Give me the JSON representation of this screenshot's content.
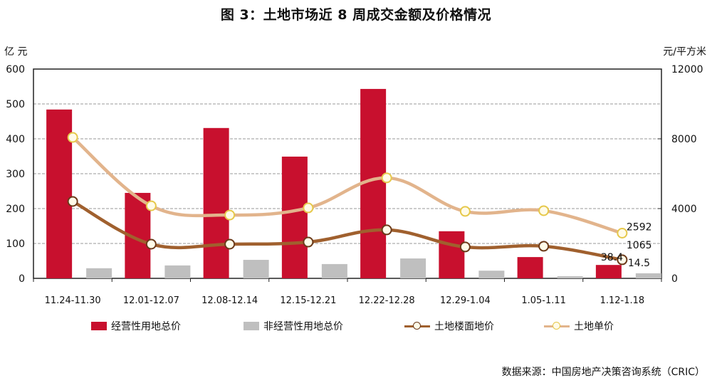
{
  "title": "图 3：土地市场近 8 周成交金额及价格情况",
  "axis_units": {
    "left": "亿 元",
    "right": "元/平方米"
  },
  "legend": [
    {
      "label": "经营性用地总价",
      "type": "bar",
      "color": "#c8102e"
    },
    {
      "label": "非经营性用地总价",
      "type": "bar",
      "color": "#bfbfbf"
    },
    {
      "label": "土地楼面地价",
      "type": "line",
      "color": "#a0602e"
    },
    {
      "label": "土地单价",
      "type": "line",
      "color": "#e2b48c"
    }
  ],
  "source": "数据来源：中国房地产决策咨询系统（CRIC）",
  "colors": {
    "commercial_bar": "#c8102e",
    "noncommercial_bar": "#bfbfbf",
    "floor_price_line": "#a0602e",
    "unit_price_line": "#e2b48c",
    "marker_fill": "#fffbe8",
    "marker_stroke_unit": "#e6c84a",
    "marker_stroke_floor": "#6b3a1a",
    "grid": "#9a9a9a"
  },
  "chart_data": {
    "type": "bar",
    "title": "图 3：土地市场近 8 周成交金额及价格情况",
    "xlabel": "",
    "ylabel": "亿 元",
    "ylabel_right": "元/平方米",
    "ylim": [
      0,
      600
    ],
    "ylim_right": [
      0,
      12000
    ],
    "yticks": [
      0,
      100,
      200,
      300,
      400,
      500,
      600
    ],
    "yticks_right": [
      0,
      4000,
      8000,
      12000
    ],
    "grid": true,
    "legend_position": "bottom",
    "categories": [
      "11.24-11.30",
      "12.01-12.07",
      "12.08-12.14",
      "12.15-12.21",
      "12.22-12.28",
      "12.29-1.04",
      "1.05-1.11",
      "1.12-1.18"
    ],
    "series": [
      {
        "name": "经营性用地总价",
        "type": "bar",
        "axis": "left",
        "values": [
          484,
          245,
          431,
          349,
          543,
          135,
          61,
          38.4
        ]
      },
      {
        "name": "非经营性用地总价",
        "type": "bar",
        "axis": "left",
        "values": [
          29,
          37,
          53,
          41,
          57,
          22,
          6,
          14.5
        ]
      },
      {
        "name": "土地楼面地价",
        "type": "line",
        "axis": "right",
        "values": [
          4410,
          1960,
          1960,
          2080,
          2780,
          1800,
          1840,
          1065
        ]
      },
      {
        "name": "土地单价",
        "type": "line",
        "axis": "right",
        "values": [
          8080,
          4160,
          3630,
          4040,
          5760,
          3840,
          3880,
          2592
        ]
      }
    ],
    "annotations": [
      {
        "series": "土地单价",
        "category": "1.12-1.18",
        "text": "2592"
      },
      {
        "series": "土地楼面地价",
        "category": "1.12-1.18",
        "text": "1065"
      },
      {
        "series": "经营性用地总价",
        "category": "1.12-1.18",
        "text": "38.4"
      },
      {
        "series": "非经营性用地总价",
        "category": "1.12-1.18",
        "text": "14.5"
      }
    ]
  }
}
